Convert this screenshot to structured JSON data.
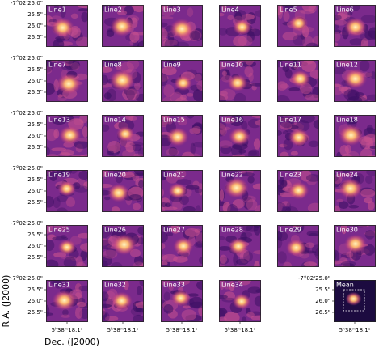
{
  "panels": [
    "Line1",
    "Line2",
    "Line3",
    "Line4",
    "Line5",
    "Line6",
    "Line7",
    "Line8",
    "Line9",
    "Line10",
    "Line11",
    "Line12",
    "Line13",
    "Line14",
    "Line15",
    "Line16",
    "Line17",
    "Line18",
    "Line19",
    "Line20",
    "Line21",
    "Line22",
    "Line23",
    "Line24",
    "Line25",
    "Line26",
    "Line27",
    "Line28",
    "Line29",
    "Line30",
    "Line31",
    "Line32",
    "Line33",
    "Line34",
    "Mean"
  ],
  "y_tick_labels": [
    "-7°02'25.0\"",
    "25.5\"",
    "26.0\"",
    "26.5\""
  ],
  "x_tick_label": "5ʰ38ᵐ18.1ˢ",
  "axis_labels": {
    "x": "Dec. (J2000)",
    "y": "R.A. (J2000)"
  }
}
